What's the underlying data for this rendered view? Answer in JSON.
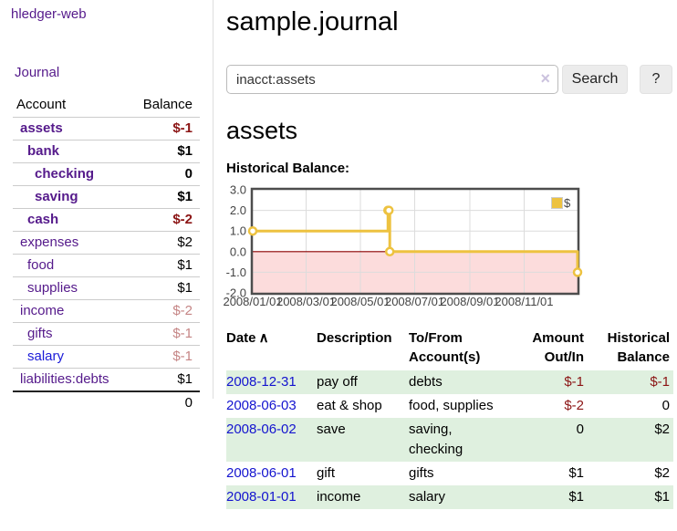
{
  "colors": {
    "link_purple": "#551a8b",
    "link_blue": "#1b1bd8",
    "negative_strong": "#8b1414",
    "negative_light": "#c58585",
    "row_stripe_green": "#dff0df",
    "chart_line_gold": "#edc240",
    "chart_negative_region": "#fcdcdc",
    "chart_zero_line": "#8b0000"
  },
  "sidebar": {
    "app_link": "hledger-web",
    "journal_link": "Journal",
    "table": {
      "account_header": "Account",
      "balance_header": "Balance",
      "rows": [
        {
          "name": "assets",
          "depth": 1,
          "bold": true,
          "link": "purple",
          "balance": "$-1",
          "bal_class": "neg-strong"
        },
        {
          "name": "bank",
          "depth": 2,
          "bold": true,
          "link": "purple",
          "balance": "$1",
          "bal_class": "pos"
        },
        {
          "name": "checking",
          "depth": 3,
          "bold": true,
          "link": "purple",
          "balance": "0",
          "bal_class": "pos"
        },
        {
          "name": "saving",
          "depth": 3,
          "bold": true,
          "link": "purple",
          "balance": "$1",
          "bal_class": "pos"
        },
        {
          "name": "cash",
          "depth": 2,
          "bold": true,
          "link": "purple",
          "balance": "$-2",
          "bal_class": "neg-strong"
        },
        {
          "name": "expenses",
          "depth": 1,
          "bold": false,
          "link": "purple",
          "balance": "$2",
          "bal_class": "pos"
        },
        {
          "name": "food",
          "depth": 2,
          "bold": false,
          "link": "purple",
          "balance": "$1",
          "bal_class": "pos"
        },
        {
          "name": "supplies",
          "depth": 2,
          "bold": false,
          "link": "purple",
          "balance": "$1",
          "bal_class": "pos"
        },
        {
          "name": "income",
          "depth": 1,
          "bold": false,
          "link": "purple",
          "balance": "$-2",
          "bal_class": "neg-light"
        },
        {
          "name": "gifts",
          "depth": 2,
          "bold": false,
          "link": "purple",
          "balance": "$-1",
          "bal_class": "neg-light"
        },
        {
          "name": "salary",
          "depth": 2,
          "bold": false,
          "link": "blue",
          "balance": "$-1",
          "bal_class": "neg-light"
        },
        {
          "name": "liabilities:debts",
          "depth": 1,
          "bold": false,
          "link": "purple",
          "balance": "$1",
          "bal_class": "pos"
        }
      ],
      "total": "0"
    }
  },
  "header": {
    "title": "sample.journal"
  },
  "search": {
    "value": "inacct:assets",
    "clear_icon": "×",
    "button_label": "Search",
    "help_button_label": "?"
  },
  "account_page": {
    "heading": "assets",
    "chart_label": "Historical Balance:"
  },
  "chart_data": {
    "type": "line",
    "line_style": "step-after",
    "title": "Historical Balance:",
    "series": [
      {
        "name": "$",
        "color": "#edc240",
        "points": [
          {
            "date": "2008-01-01",
            "day": 0,
            "value": 1
          },
          {
            "date": "2008-06-01",
            "day": 152,
            "value": 2
          },
          {
            "date": "2008-06-02",
            "day": 153,
            "value": 2
          },
          {
            "date": "2008-06-03",
            "day": 154,
            "value": 0
          },
          {
            "date": "2008-12-31",
            "day": 365,
            "value": -1
          }
        ]
      }
    ],
    "xlim": [
      0,
      365
    ],
    "ylim": [
      -2,
      3
    ],
    "yticks": [
      {
        "value": 3,
        "label": "3.0"
      },
      {
        "value": 2,
        "label": "2.0"
      },
      {
        "value": 1,
        "label": "1.0"
      },
      {
        "value": 0,
        "label": "0.0"
      },
      {
        "value": -1,
        "label": "-1.0"
      },
      {
        "value": -2,
        "label": "-2.0"
      }
    ],
    "xticks": [
      {
        "day": 0,
        "label": "2008/01/01"
      },
      {
        "day": 60,
        "label": "2008/03/01"
      },
      {
        "day": 121,
        "label": "2008/05/01"
      },
      {
        "day": 182,
        "label": "2008/07/01"
      },
      {
        "day": 244,
        "label": "2008/09/01"
      },
      {
        "day": 305,
        "label": "2008/11/01"
      }
    ],
    "legend": {
      "label": "$",
      "position": "top-right"
    },
    "grid": true,
    "negative_region_color": "#fcdcdc",
    "zero_line_color": "#8b0000"
  },
  "register": {
    "columns": [
      {
        "label": "Date",
        "sub": "",
        "sort_icon": "∧",
        "align": "left",
        "sortable": true
      },
      {
        "label": "Description",
        "sub": "",
        "align": "left",
        "sortable": false
      },
      {
        "label": "To/From",
        "sub": "Account(s)",
        "align": "left",
        "sortable": false
      },
      {
        "label": "Amount",
        "sub": "Out/In",
        "align": "right",
        "sortable": false
      },
      {
        "label": "Historical",
        "sub": "Balance",
        "align": "right",
        "sortable": false
      }
    ],
    "rows": [
      {
        "date": "2008-12-31",
        "description": "pay off",
        "accounts": "debts",
        "amount": "$-1",
        "amount_class": "neg",
        "balance": "$-1",
        "balance_class": "neg"
      },
      {
        "date": "2008-06-03",
        "description": "eat & shop",
        "accounts": "food, supplies",
        "amount": "$-2",
        "amount_class": "neg",
        "balance": "0",
        "balance_class": "pos"
      },
      {
        "date": "2008-06-02",
        "description": "save",
        "accounts": "saving, checking",
        "amount": "0",
        "amount_class": "pos",
        "balance": "$2",
        "balance_class": "pos"
      },
      {
        "date": "2008-06-01",
        "description": "gift",
        "accounts": "gifts",
        "amount": "$1",
        "amount_class": "pos",
        "balance": "$2",
        "balance_class": "pos"
      },
      {
        "date": "2008-01-01",
        "description": "income",
        "accounts": "salary",
        "amount": "$1",
        "amount_class": "pos",
        "balance": "$1",
        "balance_class": "pos"
      }
    ]
  }
}
